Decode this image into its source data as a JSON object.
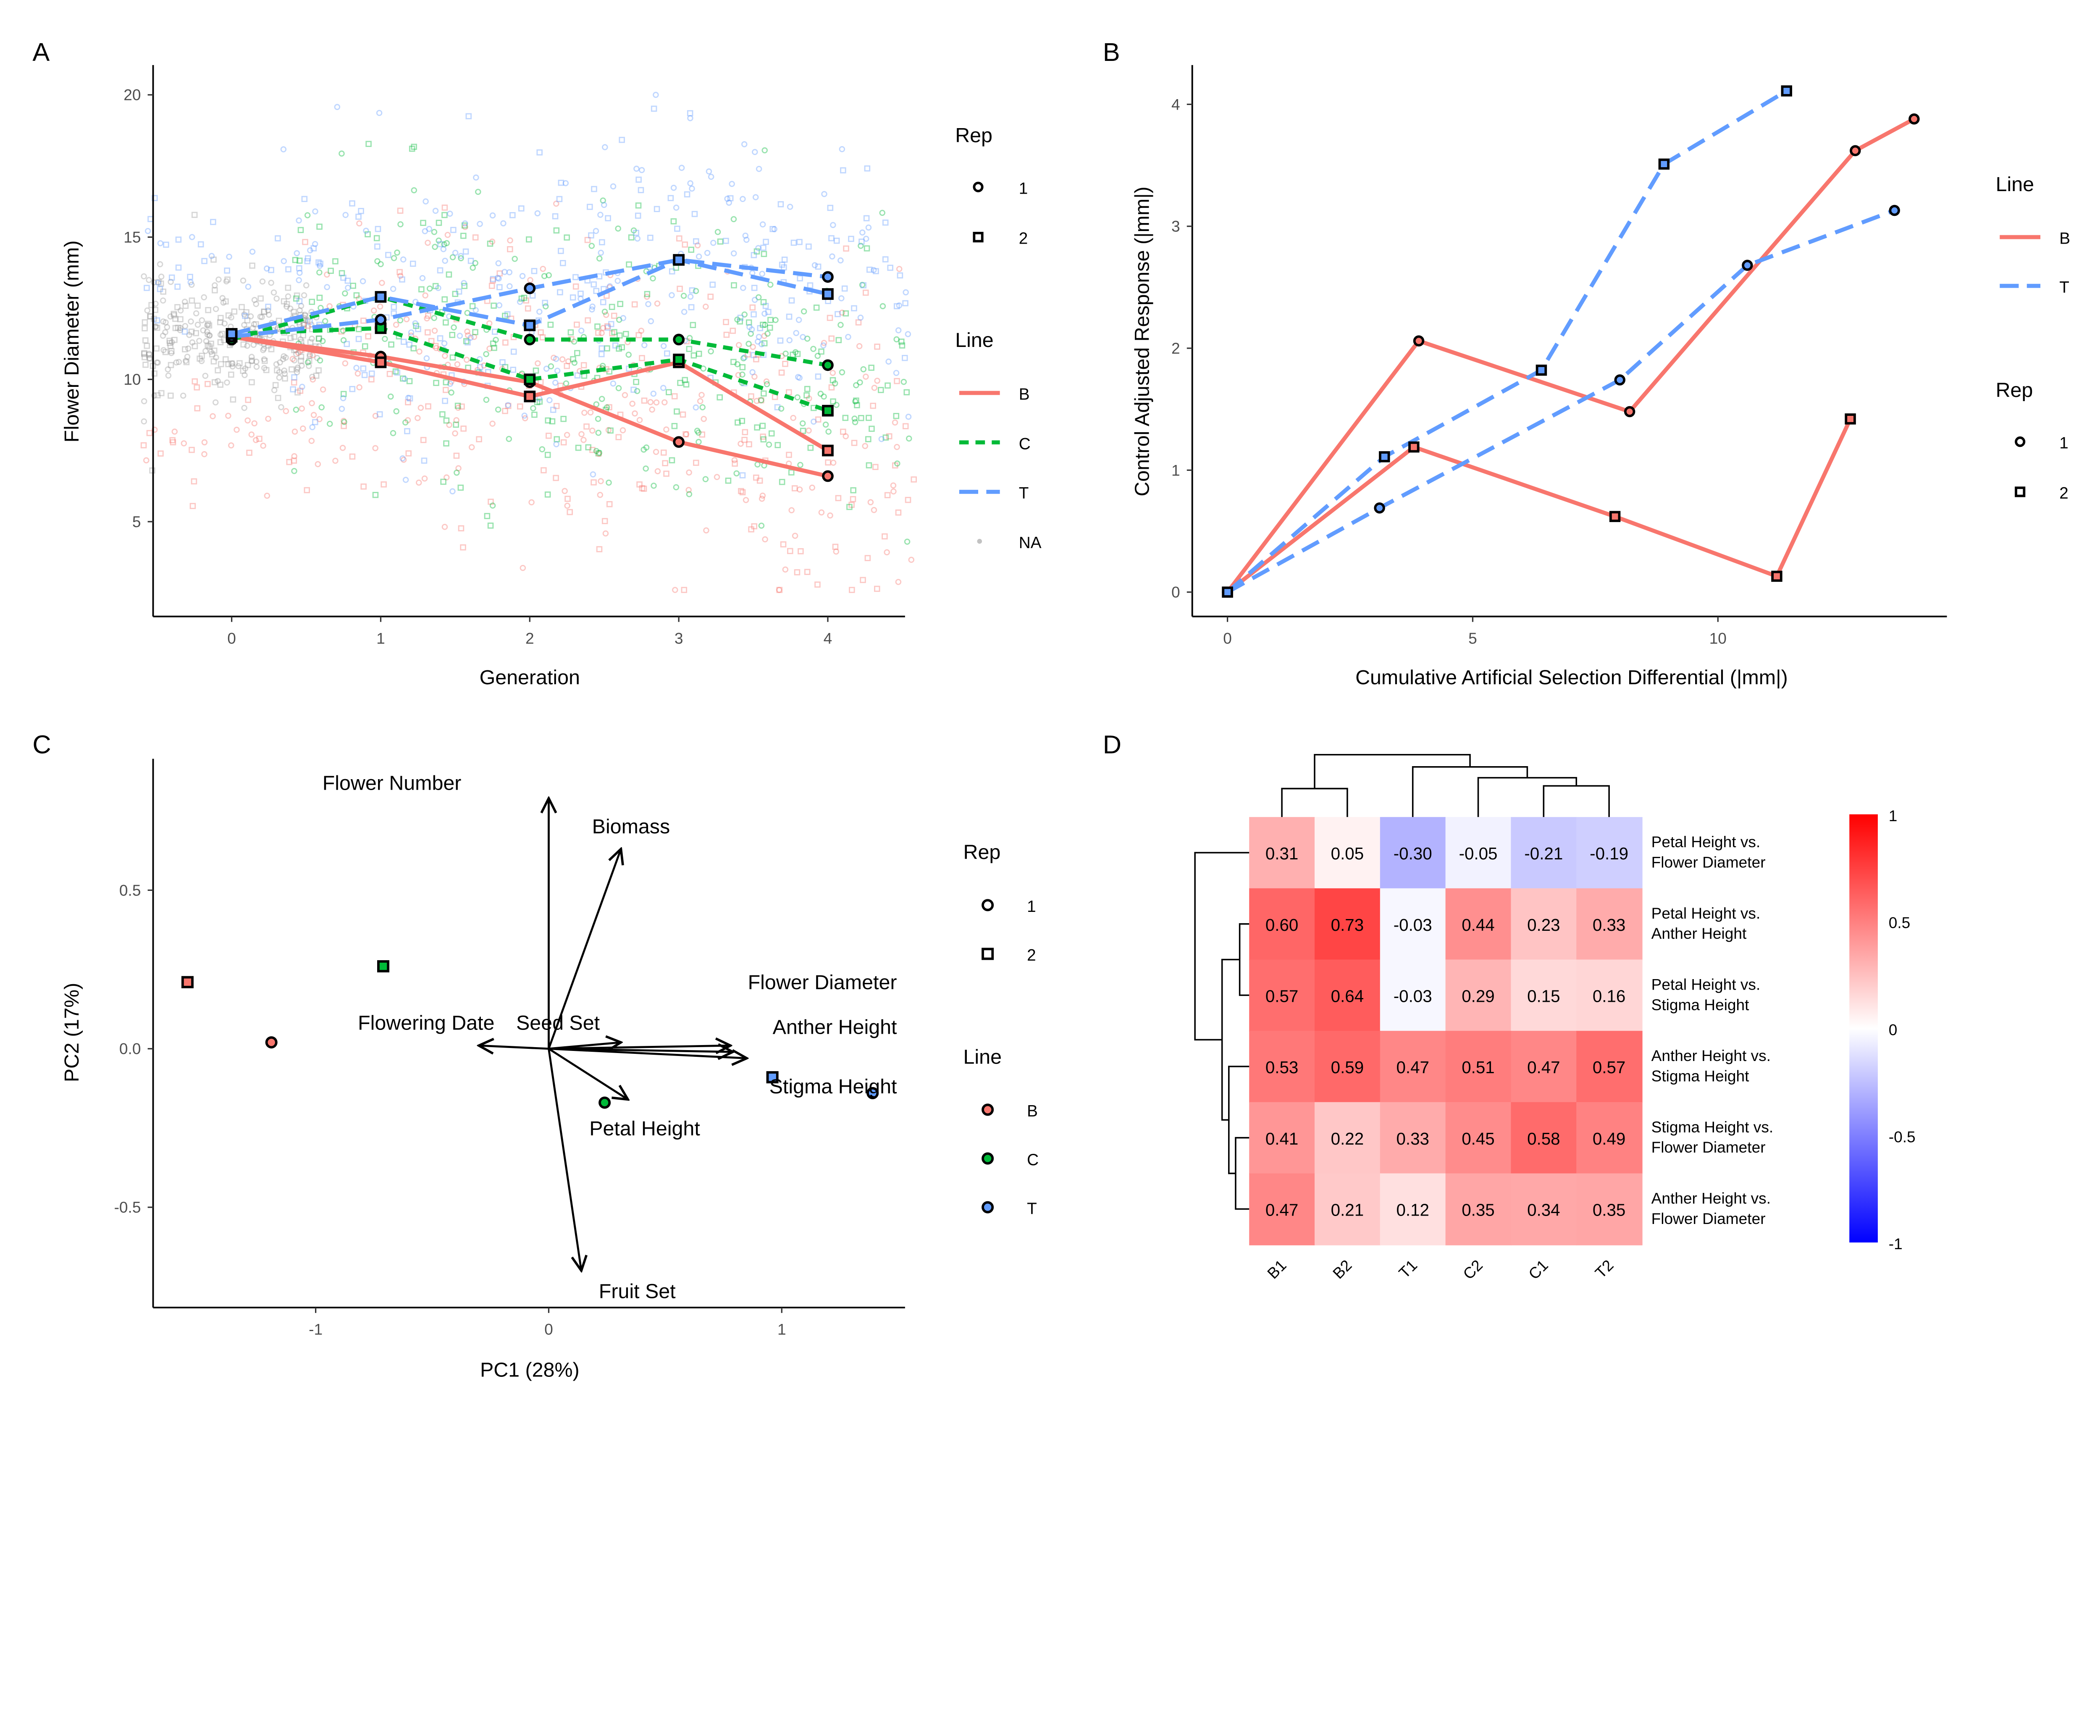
{
  "colors": {
    "B": "#F8766D",
    "C": "#00BA38",
    "T": "#619CFF",
    "NA": "#999999"
  },
  "chart_data": [
    {
      "panel": "A",
      "type": "line",
      "xlabel": "Generation",
      "ylabel": "Flower Diameter (mm)",
      "xticks": [
        "0",
        "1",
        "2",
        "3",
        "4"
      ],
      "yticks": [
        "5",
        "10",
        "15",
        "20"
      ],
      "ylim": [
        2.5,
        21.5
      ],
      "xlim": [
        -0.5,
        4.5
      ],
      "x": [
        0,
        1,
        2,
        3,
        4
      ],
      "series": [
        {
          "line": "B",
          "rep": "1",
          "values": [
            11.5,
            10.8,
            9.9,
            7.8,
            6.6
          ]
        },
        {
          "line": "B",
          "rep": "2",
          "values": [
            11.5,
            10.6,
            9.4,
            10.6,
            7.5
          ]
        },
        {
          "line": "C",
          "rep": "1",
          "values": [
            11.4,
            12.9,
            11.4,
            11.4,
            10.5
          ]
        },
        {
          "line": "C",
          "rep": "2",
          "values": [
            11.6,
            11.8,
            10.0,
            10.7,
            8.9
          ]
        },
        {
          "line": "T",
          "rep": "1",
          "values": [
            11.5,
            12.1,
            13.2,
            14.2,
            13.6
          ]
        },
        {
          "line": "T",
          "rep": "2",
          "values": [
            11.6,
            12.9,
            11.9,
            14.2,
            13.0
          ]
        }
      ],
      "legend": {
        "rep_title": "Rep",
        "reps": [
          "1",
          "2"
        ],
        "line_title": "Line",
        "lines": [
          "B",
          "C",
          "T",
          "NA"
        ]
      }
    },
    {
      "panel": "B",
      "type": "line",
      "xlabel": "Cumulative Artificial Selection Differential (|mm|)",
      "ylabel": "Control Adjusted Response (|mm|)",
      "xticks": [
        "0",
        "5",
        "10"
      ],
      "yticks": [
        "0",
        "1",
        "2",
        "3",
        "4"
      ],
      "xlim": [
        -0.7,
        14.7
      ],
      "ylim": [
        -0.2,
        4.3
      ],
      "series": [
        {
          "line": "B",
          "rep": "1",
          "x": [
            0,
            3.9,
            8.2,
            12.8,
            14.0
          ],
          "y": [
            0,
            2.06,
            1.48,
            3.62,
            3.88
          ]
        },
        {
          "line": "B",
          "rep": "2",
          "x": [
            0,
            3.8,
            7.9,
            11.2,
            12.7
          ],
          "y": [
            0,
            1.19,
            0.62,
            0.13,
            1.42
          ]
        },
        {
          "line": "T",
          "rep": "1",
          "x": [
            0,
            3.1,
            8.0,
            10.6,
            13.6
          ],
          "y": [
            0,
            0.69,
            1.74,
            2.68,
            3.13
          ]
        },
        {
          "line": "T",
          "rep": "2",
          "x": [
            0,
            3.2,
            6.4,
            8.9,
            11.4
          ],
          "y": [
            0,
            1.11,
            1.82,
            3.51,
            4.11
          ]
        }
      ],
      "legend": {
        "line_title": "Line",
        "lines": [
          "B",
          "T"
        ],
        "rep_title": "Rep",
        "reps": [
          "1",
          "2"
        ]
      }
    },
    {
      "panel": "C",
      "type": "scatter",
      "xlabel": "PC1 (28%)",
      "ylabel": "PC2 (17%)",
      "xticks": [
        "-1",
        "0",
        "1"
      ],
      "yticks": [
        "0.5",
        "0.0",
        "-0.5"
      ],
      "xlim": [
        -1.69,
        1.53
      ],
      "ylim": [
        -0.82,
        0.91
      ],
      "points": [
        {
          "line": "B",
          "rep": "2",
          "x": -1.55,
          "y": 0.21
        },
        {
          "line": "B",
          "rep": "1",
          "x": -1.19,
          "y": 0.02
        },
        {
          "line": "C",
          "rep": "2",
          "x": -0.71,
          "y": 0.26
        },
        {
          "line": "C",
          "rep": "1",
          "x": 0.24,
          "y": -0.17
        },
        {
          "line": "T",
          "rep": "2",
          "x": 0.96,
          "y": -0.09
        },
        {
          "line": "T",
          "rep": "1",
          "x": 1.39,
          "y": -0.14
        }
      ],
      "loadings": [
        {
          "name": "Flower Number",
          "x": 0.0,
          "y": 0.79
        },
        {
          "name": "Biomass",
          "x": 0.31,
          "y": 0.63
        },
        {
          "name": "Flowering Date",
          "x": -0.3,
          "y": 0.01
        },
        {
          "name": "Seed Set",
          "x": 0.31,
          "y": 0.02
        },
        {
          "name": "Flower Diameter",
          "x": 0.78,
          "y": 0.01
        },
        {
          "name": "Anther Height",
          "x": 0.79,
          "y": -0.01
        },
        {
          "name": "Stigma Height",
          "x": 0.85,
          "y": -0.03
        },
        {
          "name": "Petal Height",
          "x": 0.34,
          "y": -0.16
        },
        {
          "name": "Fruit Set",
          "x": 0.14,
          "y": -0.7
        }
      ],
      "legend": {
        "rep_title": "Rep",
        "reps": [
          "1",
          "2"
        ],
        "line_title": "Line",
        "lines": [
          "B",
          "C",
          "T"
        ]
      }
    },
    {
      "panel": "D",
      "type": "heatmap",
      "columns": [
        "B1",
        "B2",
        "T1",
        "C2",
        "C1",
        "T2"
      ],
      "rows": [
        [
          "Petal Height vs.",
          "Flower Diameter"
        ],
        [
          "Petal Height vs.",
          "Anther Height"
        ],
        [
          "Petal Height vs.",
          "Stigma Height"
        ],
        [
          "Anther Height vs.",
          "Stigma Height"
        ],
        [
          "Stigma Height vs.",
          "Flower Diameter"
        ],
        [
          "Anther Height vs.",
          "Flower Diameter"
        ]
      ],
      "values": [
        [
          "0.31",
          "0.05",
          "-0.30",
          "-0.05",
          "-0.21",
          "-0.19"
        ],
        [
          "0.60",
          "0.73",
          "-0.03",
          "0.44",
          "0.23",
          "0.33"
        ],
        [
          "0.57",
          "0.64",
          "-0.03",
          "0.29",
          "0.15",
          "0.16"
        ],
        [
          "0.53",
          "0.59",
          "0.47",
          "0.51",
          "0.47",
          "0.57"
        ],
        [
          "0.41",
          "0.22",
          "0.33",
          "0.45",
          "0.58",
          "0.49"
        ],
        [
          "0.47",
          "0.21",
          "0.12",
          "0.35",
          "0.34",
          "0.35"
        ]
      ],
      "colorbar": {
        "ticks": [
          "1",
          "0.5",
          "0",
          "-0.5",
          "-1"
        ],
        "range": [
          -1,
          1
        ],
        "low": "#0000FF",
        "mid": "#FFFFFF",
        "high": "#FF0000"
      }
    }
  ],
  "panels": {
    "A": "A",
    "B": "B",
    "C": "C",
    "D": "D"
  }
}
